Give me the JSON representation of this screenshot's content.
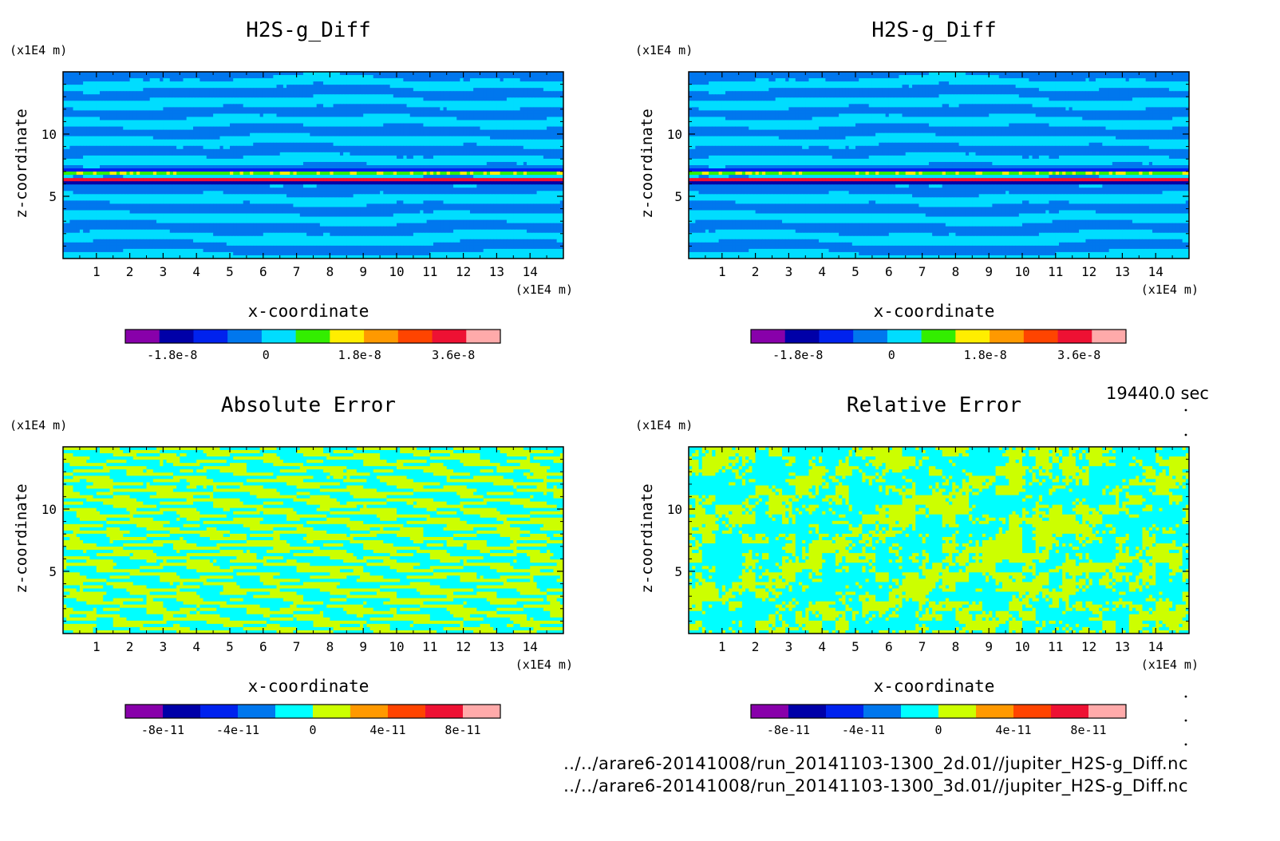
{
  "figure": {
    "time_label": "19440.0 sec",
    "file_lines": [
      "../../arare6-20141008/run_20141103-1300_2d.01//jupiter_H2S-g_Diff.nc",
      "../../arare6-20141008/run_20141103-1300_3d.01//jupiter_H2S-g_Diff.nc"
    ]
  },
  "chart_data": [
    {
      "type": "heatmap",
      "title": "H2S-g_Diff",
      "xlabel": "x-coordinate",
      "ylabel": "z-coordinate",
      "x_unit": "(x1E4 m)",
      "y_unit": "(x1E4 m)",
      "xlim": [
        0,
        15
      ],
      "ylim": [
        0,
        15
      ],
      "xticks": [
        1,
        2,
        3,
        4,
        5,
        6,
        7,
        8,
        9,
        10,
        11,
        12,
        13,
        14
      ],
      "yticks": [
        5,
        10
      ],
      "pattern": "bands",
      "colorbar": {
        "colors": [
          "#8800aa",
          "#0000a8",
          "#0022ee",
          "#0077ee",
          "#00ddff",
          "#33ee00",
          "#ffee00",
          "#ff9900",
          "#ff4400",
          "#ee1133",
          "#ffaaaa"
        ],
        "tick_labels": [
          "-1.8e-8",
          "0",
          "1.8e-8",
          "3.6e-8"
        ],
        "tick_values": [
          -1.8e-08,
          0,
          1.8e-08,
          3.6e-08
        ],
        "range": [
          -2.7e-08,
          4.5e-08
        ]
      }
    },
    {
      "type": "heatmap",
      "title": "H2S-g_Diff",
      "xlabel": "x-coordinate",
      "ylabel": "z-coordinate",
      "x_unit": "(x1E4 m)",
      "y_unit": "(x1E4 m)",
      "xlim": [
        0,
        15
      ],
      "ylim": [
        0,
        15
      ],
      "xticks": [
        1,
        2,
        3,
        4,
        5,
        6,
        7,
        8,
        9,
        10,
        11,
        12,
        13,
        14
      ],
      "yticks": [
        5,
        10
      ],
      "pattern": "bands",
      "colorbar": {
        "colors": [
          "#8800aa",
          "#0000a8",
          "#0022ee",
          "#0077ee",
          "#00ddff",
          "#33ee00",
          "#ffee00",
          "#ff9900",
          "#ff4400",
          "#ee1133",
          "#ffaaaa"
        ],
        "tick_labels": [
          "-1.8e-8",
          "0",
          "1.8e-8",
          "3.6e-8"
        ],
        "tick_values": [
          -1.8e-08,
          0,
          1.8e-08,
          3.6e-08
        ],
        "range": [
          -2.7e-08,
          4.5e-08
        ]
      }
    },
    {
      "type": "heatmap",
      "title": "Absolute Error",
      "xlabel": "x-coordinate",
      "ylabel": "z-coordinate",
      "x_unit": "(x1E4 m)",
      "y_unit": "(x1E4 m)",
      "xlim": [
        0,
        15
      ],
      "ylim": [
        0,
        15
      ],
      "xticks": [
        1,
        2,
        3,
        4,
        5,
        6,
        7,
        8,
        9,
        10,
        11,
        12,
        13,
        14
      ],
      "yticks": [
        5,
        10
      ],
      "pattern": "noise_h",
      "colorbar": {
        "colors": [
          "#8800aa",
          "#0000a8",
          "#0022ee",
          "#0077ee",
          "#00ffff",
          "#ccff00",
          "#ff9900",
          "#ff4400",
          "#ee1133",
          "#ffaaaa"
        ],
        "tick_labels": [
          "-8e-11",
          "-4e-11",
          "0",
          "4e-11",
          "8e-11"
        ],
        "tick_values": [
          -8e-11,
          -4e-11,
          0,
          4e-11,
          8e-11
        ],
        "range": [
          -1e-10,
          1e-10
        ]
      }
    },
    {
      "type": "heatmap",
      "title": "Relative Error",
      "xlabel": "x-coordinate",
      "ylabel": "z-coordinate",
      "x_unit": "(x1E4 m)",
      "y_unit": "(x1E4 m)",
      "xlim": [
        0,
        15
      ],
      "ylim": [
        0,
        15
      ],
      "xticks": [
        1,
        2,
        3,
        4,
        5,
        6,
        7,
        8,
        9,
        10,
        11,
        12,
        13,
        14
      ],
      "yticks": [
        5,
        10
      ],
      "pattern": "noise_blob",
      "colorbar": {
        "colors": [
          "#8800aa",
          "#0000a8",
          "#0022ee",
          "#0077ee",
          "#00ffff",
          "#ccff00",
          "#ff9900",
          "#ff4400",
          "#ee1133",
          "#ffaaaa"
        ],
        "tick_labels": [
          "-8e-11",
          "-4e-11",
          "0",
          "4e-11",
          "8e-11"
        ],
        "tick_values": [
          -8e-11,
          -4e-11,
          0,
          4e-11,
          8e-11
        ],
        "range": [
          -1e-10,
          1e-10
        ]
      }
    }
  ]
}
